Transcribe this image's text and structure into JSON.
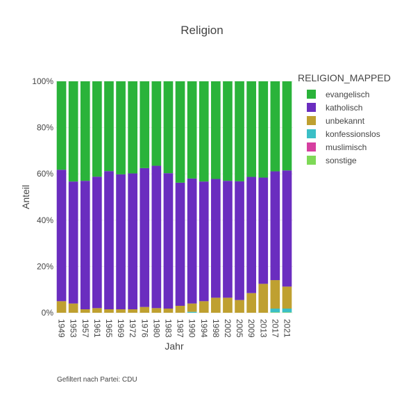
{
  "chart_data": {
    "type": "bar",
    "stacked": true,
    "normalized": true,
    "title": "Religion",
    "xlabel": "Jahr",
    "ylabel": "Anteil",
    "ylim": [
      0,
      1
    ],
    "yticks": [
      0,
      0.2,
      0.4,
      0.6,
      0.8,
      1.0
    ],
    "ytick_labels": [
      "0%",
      "20%",
      "40%",
      "60%",
      "80%",
      "100%"
    ],
    "legend_title": "RELIGION_MAPPED",
    "legend_position": "top-right",
    "categories": [
      "1949",
      "1953",
      "1957",
      "1961",
      "1965",
      "1969",
      "1972",
      "1976",
      "1980",
      "1983",
      "1987",
      "1990",
      "1994",
      "1998",
      "2002",
      "2005",
      "2009",
      "2013",
      "2017",
      "2021"
    ],
    "series": [
      {
        "name": "sonstige",
        "color": "#7ed957",
        "values": [
          0,
          0,
          0,
          0,
          0,
          0,
          0,
          0,
          0,
          0,
          0,
          0,
          0,
          0,
          0,
          0,
          0,
          0,
          0.002,
          0.002
        ]
      },
      {
        "name": "muslimisch",
        "color": "#d63fa0",
        "values": [
          0,
          0,
          0,
          0,
          0,
          0,
          0,
          0,
          0,
          0,
          0,
          0,
          0,
          0,
          0,
          0,
          0,
          0,
          0,
          0
        ]
      },
      {
        "name": "konfessionslos",
        "color": "#3bbfc6",
        "values": [
          0,
          0,
          0,
          0,
          0,
          0,
          0,
          0,
          0,
          0,
          0,
          0.004,
          0,
          0,
          0,
          0,
          0,
          0,
          0.016,
          0.016
        ]
      },
      {
        "name": "unbekannt",
        "color": "#bfa030",
        "values": [
          0.05,
          0.04,
          0.015,
          0.02,
          0.015,
          0.015,
          0.015,
          0.025,
          0.02,
          0.018,
          0.03,
          0.036,
          0.05,
          0.065,
          0.065,
          0.055,
          0.085,
          0.125,
          0.123,
          0.095
        ]
      },
      {
        "name": "katholisch",
        "color": "#6a2dbf",
        "values": [
          0.568,
          0.527,
          0.555,
          0.568,
          0.597,
          0.583,
          0.587,
          0.6,
          0.615,
          0.585,
          0.532,
          0.54,
          0.517,
          0.513,
          0.505,
          0.513,
          0.502,
          0.459,
          0.47,
          0.502
        ]
      },
      {
        "name": "evangelisch",
        "color": "#2ab33a",
        "values": [
          0.382,
          0.433,
          0.43,
          0.412,
          0.388,
          0.402,
          0.398,
          0.375,
          0.365,
          0.397,
          0.438,
          0.42,
          0.433,
          0.422,
          0.43,
          0.432,
          0.413,
          0.416,
          0.389,
          0.385
        ]
      }
    ]
  },
  "legend_order": [
    "evangelisch",
    "katholisch",
    "unbekannt",
    "konfessionslos",
    "muslimisch",
    "sonstige"
  ],
  "footnote": "Gefiltert nach Partei: CDU"
}
